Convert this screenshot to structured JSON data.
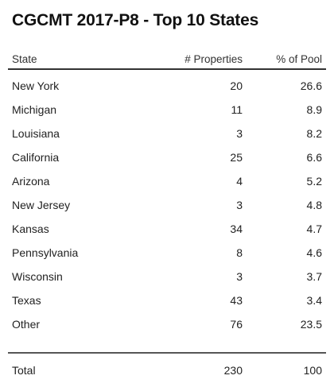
{
  "title": "CGCMT 2017-P8 - Top 10 States",
  "table": {
    "headers": {
      "state": "State",
      "properties": "# Properties",
      "pool": "% of Pool"
    },
    "rows": [
      {
        "state": "New York",
        "properties": "20",
        "pool": "26.6"
      },
      {
        "state": "Michigan",
        "properties": "11",
        "pool": "8.9"
      },
      {
        "state": "Louisiana",
        "properties": "3",
        "pool": "8.2"
      },
      {
        "state": "California",
        "properties": "25",
        "pool": "6.6"
      },
      {
        "state": "Arizona",
        "properties": "4",
        "pool": "5.2"
      },
      {
        "state": "New Jersey",
        "properties": "3",
        "pool": "4.8"
      },
      {
        "state": "Kansas",
        "properties": "34",
        "pool": "4.7"
      },
      {
        "state": "Pennsylvania",
        "properties": "8",
        "pool": "4.6"
      },
      {
        "state": "Wisconsin",
        "properties": "3",
        "pool": "3.7"
      },
      {
        "state": "Texas",
        "properties": "43",
        "pool": "3.4"
      },
      {
        "state": "Other",
        "properties": "76",
        "pool": "23.5"
      }
    ],
    "total": {
      "state": "Total",
      "properties": "230",
      "pool": "100"
    }
  }
}
